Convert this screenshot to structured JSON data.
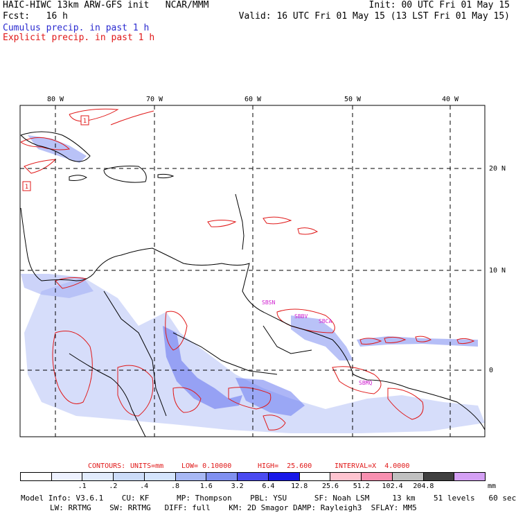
{
  "header": {
    "title_left": "HAIC-HIWC 13km ARW-GFS init   NCAR/MMM",
    "init": "Init: 00 UTC Fri 01 May 15",
    "fcst": "Fcst:   16 h",
    "valid": "Valid: 16 UTC Fri 01 May 15 (13 LST Fri 01 May 15)",
    "field1": "Cumulus precip. in past 1 h",
    "field2": "Explicit precip. in past 1 h"
  },
  "map": {
    "lon_labels": [
      "80 W",
      "70 W",
      "60 W",
      "50 W",
      "40 W"
    ],
    "lat_labels": [
      "20 N",
      "10 N",
      "0"
    ],
    "box_labels": [
      "1",
      "1"
    ],
    "station_labels": [
      "SBSN",
      "SBBV",
      "SBCA",
      "SBMQ"
    ],
    "colors": {
      "cumulus": "#5a6af0",
      "cumulus_light": "#b8c4f8",
      "explicit": "#e01818",
      "station": "#d020d0",
      "coast": "#000000"
    }
  },
  "contours": {
    "label": "CONTOURS:",
    "units": "UNITS=mm",
    "low": "LOW= 0.10000",
    "high": "HIGH=  25.600",
    "interval": "INTERVAL=X  4.0000"
  },
  "legend": {
    "colors": [
      "#ffffff",
      "#eef2ff",
      "#e2ecfc",
      "#ccdcf8",
      "#d4e4fc",
      "#a8b8f4",
      "#8090f0",
      "#4a4af0",
      "#1818e8",
      "#ffffff",
      "#ffc4d0",
      "#f890b0",
      "#c0c0c0",
      "#404040",
      "#d4a0f4"
    ],
    "labels": [
      ".1",
      ".2",
      ".4",
      ".8",
      "1.6",
      "3.2",
      "6.4",
      "12.8",
      "25.6",
      "51.2",
      "102.4",
      "204.8"
    ],
    "unit": "mm"
  },
  "model_info": {
    "line1": "Model Info: V3.6.1    CU: KF      MP: Thompson    PBL: YSU      SF: Noah LSM     13 km    51 levels   60 sec",
    "line2": "LW: RRTMG    SW: RRTMG   DIFF: full    KM: 2D Smagor DAMP: Rayleigh3  SFLAY: MM5"
  }
}
